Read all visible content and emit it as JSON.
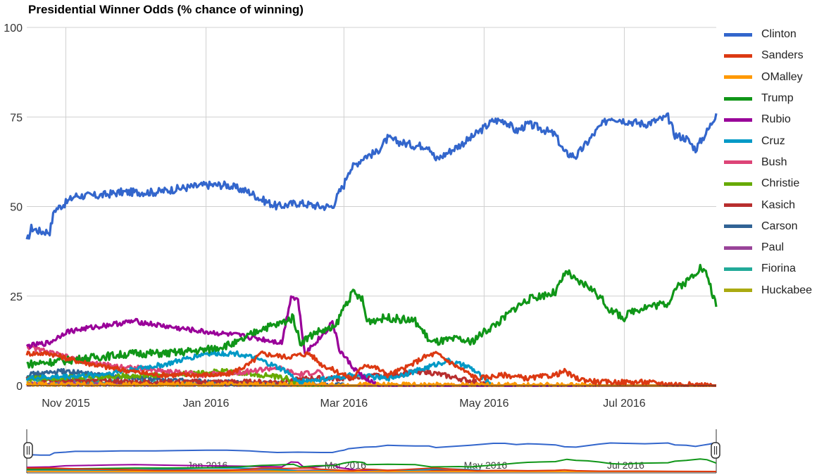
{
  "chart_data": {
    "type": "line",
    "title": "Presidential Winner Odds (% chance of winning)",
    "xlabel": "",
    "ylabel": "",
    "ylim": [
      0,
      100
    ],
    "xlim": [
      "2015-10-15",
      "2016-08-10"
    ],
    "yticks": [
      "0",
      "25",
      "50",
      "75",
      "100"
    ],
    "xticks": [
      {
        "date": "2015-11-01",
        "label": "Nov 2015"
      },
      {
        "date": "2016-01-01",
        "label": "Jan 2016"
      },
      {
        "date": "2016-03-01",
        "label": "Mar 2016"
      },
      {
        "date": "2016-05-01",
        "label": "May 2016"
      },
      {
        "date": "2016-07-01",
        "label": "Jul 2016"
      }
    ],
    "grid": true,
    "legend_position": "right",
    "series": [
      {
        "name": "Clinton",
        "color": "#3366cc",
        "points": [
          [
            "2015-10-15",
            40
          ],
          [
            "2015-10-17",
            44
          ],
          [
            "2015-10-21",
            43
          ],
          [
            "2015-10-25",
            43
          ],
          [
            "2015-10-27",
            49
          ],
          [
            "2015-11-01",
            51
          ],
          [
            "2015-11-05",
            53
          ],
          [
            "2015-11-15",
            53
          ],
          [
            "2015-11-25",
            54
          ],
          [
            "2015-12-10",
            54
          ],
          [
            "2015-12-20",
            55
          ],
          [
            "2016-01-01",
            56
          ],
          [
            "2016-01-10",
            56
          ],
          [
            "2016-01-20",
            54
          ],
          [
            "2016-01-25",
            52
          ],
          [
            "2016-02-01",
            50
          ],
          [
            "2016-02-10",
            51
          ],
          [
            "2016-02-20",
            50
          ],
          [
            "2016-02-25",
            50
          ],
          [
            "2016-02-28",
            54
          ],
          [
            "2016-03-01",
            56
          ],
          [
            "2016-03-03",
            60
          ],
          [
            "2016-03-10",
            64
          ],
          [
            "2016-03-15",
            65
          ],
          [
            "2016-03-20",
            69
          ],
          [
            "2016-03-25",
            68
          ],
          [
            "2016-04-01",
            67
          ],
          [
            "2016-04-07",
            67
          ],
          [
            "2016-04-10",
            63
          ],
          [
            "2016-04-15",
            65
          ],
          [
            "2016-04-25",
            69
          ],
          [
            "2016-05-01",
            72
          ],
          [
            "2016-05-05",
            74
          ],
          [
            "2016-05-10",
            74
          ],
          [
            "2016-05-15",
            71
          ],
          [
            "2016-05-20",
            73
          ],
          [
            "2016-05-25",
            72
          ],
          [
            "2016-06-01",
            70
          ],
          [
            "2016-06-05",
            65
          ],
          [
            "2016-06-10",
            64
          ],
          [
            "2016-06-15",
            68
          ],
          [
            "2016-06-20",
            72
          ],
          [
            "2016-06-25",
            75
          ],
          [
            "2016-07-01",
            74
          ],
          [
            "2016-07-10",
            73
          ],
          [
            "2016-07-20",
            75
          ],
          [
            "2016-07-23",
            70
          ],
          [
            "2016-07-28",
            69
          ],
          [
            "2016-08-01",
            66
          ],
          [
            "2016-08-04",
            69
          ],
          [
            "2016-08-07",
            72
          ],
          [
            "2016-08-10",
            76
          ]
        ]
      },
      {
        "name": "Sanders",
        "color": "#dc3912",
        "points": [
          [
            "2015-10-15",
            9
          ],
          [
            "2015-10-25",
            9
          ],
          [
            "2015-11-05",
            7
          ],
          [
            "2015-11-20",
            5
          ],
          [
            "2015-12-10",
            3
          ],
          [
            "2015-12-25",
            3
          ],
          [
            "2016-01-10",
            3
          ],
          [
            "2016-01-20",
            6
          ],
          [
            "2016-01-25",
            9
          ],
          [
            "2016-02-05",
            8
          ],
          [
            "2016-02-15",
            9
          ],
          [
            "2016-02-20",
            6
          ],
          [
            "2016-03-01",
            3
          ],
          [
            "2016-03-05",
            2
          ],
          [
            "2016-03-10",
            6
          ],
          [
            "2016-03-15",
            5
          ],
          [
            "2016-03-20",
            3
          ],
          [
            "2016-03-28",
            5
          ],
          [
            "2016-04-05",
            8
          ],
          [
            "2016-04-10",
            9
          ],
          [
            "2016-04-15",
            7
          ],
          [
            "2016-04-20",
            5
          ],
          [
            "2016-04-28",
            2
          ],
          [
            "2016-05-10",
            3
          ],
          [
            "2016-05-20",
            2
          ],
          [
            "2016-06-01",
            3
          ],
          [
            "2016-06-05",
            4
          ],
          [
            "2016-06-10",
            2
          ],
          [
            "2016-06-20",
            1
          ],
          [
            "2016-07-01",
            1
          ],
          [
            "2016-07-10",
            1
          ],
          [
            "2016-07-20",
            0.5
          ],
          [
            "2016-08-10",
            0
          ]
        ]
      },
      {
        "name": "OMalley",
        "color": "#ff9900",
        "points": [
          [
            "2015-10-15",
            0.3
          ],
          [
            "2016-08-10",
            0
          ]
        ]
      },
      {
        "name": "Trump",
        "color": "#109618",
        "points": [
          [
            "2015-10-15",
            6
          ],
          [
            "2015-11-01",
            7
          ],
          [
            "2015-11-15",
            8
          ],
          [
            "2015-12-01",
            9
          ],
          [
            "2015-12-15",
            9
          ],
          [
            "2016-01-01",
            10
          ],
          [
            "2016-01-15",
            12
          ],
          [
            "2016-01-25",
            16
          ],
          [
            "2016-02-01",
            17
          ],
          [
            "2016-02-08",
            19
          ],
          [
            "2016-02-11",
            12
          ],
          [
            "2016-02-18",
            15
          ],
          [
            "2016-02-26",
            16
          ],
          [
            "2016-03-01",
            22
          ],
          [
            "2016-03-05",
            26
          ],
          [
            "2016-03-09",
            24
          ],
          [
            "2016-03-11",
            18
          ],
          [
            "2016-03-20",
            19
          ],
          [
            "2016-04-01",
            18
          ],
          [
            "2016-04-08",
            12
          ],
          [
            "2016-04-20",
            13
          ],
          [
            "2016-04-25",
            12
          ],
          [
            "2016-05-01",
            15
          ],
          [
            "2016-05-08",
            18
          ],
          [
            "2016-05-15",
            22
          ],
          [
            "2016-05-20",
            24
          ],
          [
            "2016-05-25",
            25
          ],
          [
            "2016-06-01",
            26
          ],
          [
            "2016-06-06",
            32
          ],
          [
            "2016-06-10",
            29
          ],
          [
            "2016-06-15",
            28
          ],
          [
            "2016-06-20",
            25
          ],
          [
            "2016-06-25",
            21
          ],
          [
            "2016-07-01",
            19
          ],
          [
            "2016-07-05",
            21
          ],
          [
            "2016-07-10",
            22
          ],
          [
            "2016-07-20",
            23
          ],
          [
            "2016-07-23",
            27
          ],
          [
            "2016-07-28",
            29
          ],
          [
            "2016-08-03",
            33
          ],
          [
            "2016-08-06",
            31
          ],
          [
            "2016-08-10",
            22
          ]
        ]
      },
      {
        "name": "Rubio",
        "color": "#990099",
        "points": [
          [
            "2015-10-15",
            11
          ],
          [
            "2015-10-25",
            12
          ],
          [
            "2015-11-01",
            15
          ],
          [
            "2015-11-10",
            16
          ],
          [
            "2015-11-20",
            17
          ],
          [
            "2015-12-01",
            18
          ],
          [
            "2015-12-10",
            17
          ],
          [
            "2015-12-20",
            16
          ],
          [
            "2016-01-01",
            15
          ],
          [
            "2016-01-15",
            14
          ],
          [
            "2016-01-25",
            13
          ],
          [
            "2016-02-03",
            12
          ],
          [
            "2016-02-07",
            25
          ],
          [
            "2016-02-10",
            24
          ],
          [
            "2016-02-13",
            9
          ],
          [
            "2016-02-16",
            11
          ],
          [
            "2016-02-22",
            15
          ],
          [
            "2016-02-25",
            18
          ],
          [
            "2016-02-28",
            10
          ],
          [
            "2016-03-05",
            5
          ],
          [
            "2016-03-10",
            2
          ],
          [
            "2016-03-16",
            0
          ],
          [
            "2016-08-10",
            0
          ]
        ]
      },
      {
        "name": "Cruz",
        "color": "#0099c6",
        "points": [
          [
            "2015-10-15",
            2
          ],
          [
            "2015-11-15",
            3
          ],
          [
            "2015-12-15",
            6
          ],
          [
            "2016-01-01",
            9
          ],
          [
            "2016-01-15",
            9
          ],
          [
            "2016-01-25",
            7
          ],
          [
            "2016-02-05",
            4
          ],
          [
            "2016-02-10",
            1
          ],
          [
            "2016-02-25",
            2
          ],
          [
            "2016-03-05",
            3
          ],
          [
            "2016-03-20",
            2
          ],
          [
            "2016-04-01",
            4
          ],
          [
            "2016-04-15",
            7
          ],
          [
            "2016-04-25",
            5
          ],
          [
            "2016-05-01",
            2
          ],
          [
            "2016-05-05",
            0
          ],
          [
            "2016-08-10",
            0
          ]
        ]
      },
      {
        "name": "Bush",
        "color": "#dd4477",
        "points": [
          [
            "2015-10-15",
            11
          ],
          [
            "2015-11-01",
            8
          ],
          [
            "2015-11-15",
            6
          ],
          [
            "2015-12-01",
            5
          ],
          [
            "2015-12-15",
            4
          ],
          [
            "2016-01-01",
            3
          ],
          [
            "2016-01-20",
            4
          ],
          [
            "2016-02-01",
            5
          ],
          [
            "2016-02-10",
            3
          ],
          [
            "2016-02-20",
            4
          ],
          [
            "2016-02-22",
            0
          ],
          [
            "2016-08-10",
            0
          ]
        ]
      },
      {
        "name": "Christie",
        "color": "#66aa00",
        "points": [
          [
            "2015-10-15",
            2
          ],
          [
            "2015-12-15",
            3
          ],
          [
            "2016-01-10",
            4
          ],
          [
            "2016-01-25",
            3
          ],
          [
            "2016-02-05",
            2
          ],
          [
            "2016-02-10",
            0
          ],
          [
            "2016-08-10",
            0
          ]
        ]
      },
      {
        "name": "Kasich",
        "color": "#b82e2e",
        "points": [
          [
            "2015-10-15",
            2
          ],
          [
            "2015-12-01",
            1
          ],
          [
            "2016-02-01",
            1
          ],
          [
            "2016-02-15",
            2
          ],
          [
            "2016-03-01",
            2
          ],
          [
            "2016-03-20",
            3
          ],
          [
            "2016-04-05",
            4
          ],
          [
            "2016-04-20",
            2
          ],
          [
            "2016-05-04",
            0
          ],
          [
            "2016-08-10",
            0
          ]
        ]
      },
      {
        "name": "Carson",
        "color": "#316395",
        "points": [
          [
            "2015-10-15",
            3
          ],
          [
            "2015-11-01",
            4
          ],
          [
            "2015-11-15",
            3
          ],
          [
            "2015-12-01",
            2
          ],
          [
            "2016-01-01",
            1
          ],
          [
            "2016-03-04",
            0
          ],
          [
            "2016-08-10",
            0
          ]
        ]
      },
      {
        "name": "Paul",
        "color": "#994499",
        "points": [
          [
            "2015-10-15",
            0.5
          ],
          [
            "2016-02-03",
            0
          ],
          [
            "2016-08-10",
            0
          ]
        ]
      },
      {
        "name": "Fiorina",
        "color": "#22aa99",
        "points": [
          [
            "2015-10-15",
            2
          ],
          [
            "2015-11-15",
            1
          ],
          [
            "2016-02-10",
            0
          ],
          [
            "2016-08-10",
            0
          ]
        ]
      },
      {
        "name": "Huckabee",
        "color": "#aaaa11",
        "points": [
          [
            "2015-10-15",
            0.5
          ],
          [
            "2016-02-01",
            0
          ],
          [
            "2016-08-10",
            0
          ]
        ]
      }
    ]
  },
  "navigator": {
    "tick_labels": [
      "Jan 2016",
      "Mar 2016",
      "May 2016",
      "Jul 2016"
    ]
  }
}
